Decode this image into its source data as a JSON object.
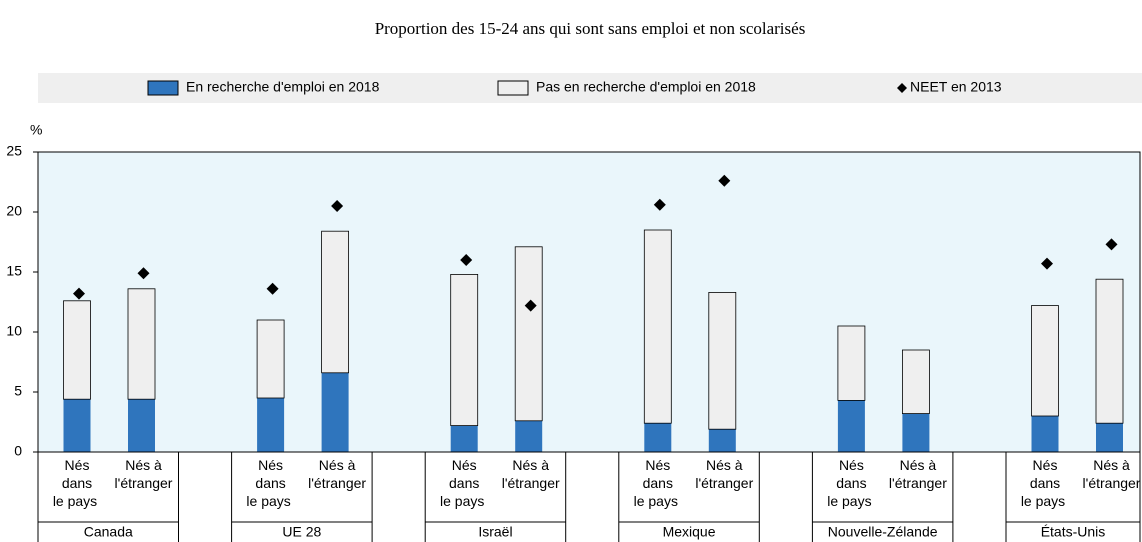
{
  "chart_data": {
    "type": "bar",
    "stacked": true,
    "title": "Proportion des 15-24 ans qui sont sans emploi et non scolarisés",
    "y_label": "%",
    "groups": [
      "Canada",
      "UE 28",
      "Israël",
      "Mexique",
      "Nouvelle-Zélande",
      "États-Unis"
    ],
    "subcategories": [
      [
        "Nés",
        "dans",
        "le pays"
      ],
      [
        "Nés à",
        "l'étranger"
      ]
    ],
    "series": [
      {
        "name": "En recherche d'emploi en  2018",
        "color": "#2f75bd",
        "values": [
          4.4,
          4.4,
          4.5,
          6.6,
          2.2,
          2.6,
          2.4,
          1.9,
          4.3,
          3.2,
          3.0,
          2.4
        ]
      },
      {
        "name": "Pas en recherche d'emploi en 2018",
        "color": "#efefef",
        "values": [
          8.2,
          9.2,
          6.5,
          11.8,
          12.6,
          14.5,
          16.1,
          11.4,
          6.2,
          5.3,
          9.2,
          12.0
        ]
      },
      {
        "name": "NEET en 2013",
        "color": "#000000",
        "type": "marker",
        "values": [
          13.2,
          14.9,
          13.6,
          20.5,
          16.0,
          12.2,
          20.6,
          22.6,
          null,
          null,
          15.7,
          17.3
        ]
      }
    ],
    "ylim": [
      0,
      25
    ],
    "yticks": [
      0,
      5,
      10,
      15,
      20,
      25
    ]
  }
}
